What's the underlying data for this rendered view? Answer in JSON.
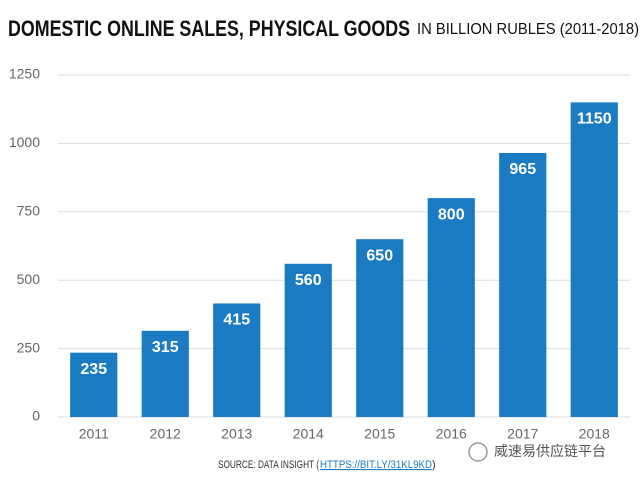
{
  "chart_data": {
    "type": "bar",
    "title": "DOMESTIC ONLINE SALES, PHYSICAL GOODS",
    "subtitle": "IN BILLION RUBLES (2011-2018)",
    "categories": [
      "2011",
      "2012",
      "2013",
      "2014",
      "2015",
      "2016",
      "2017",
      "2018"
    ],
    "values": [
      235,
      315,
      415,
      560,
      650,
      800,
      965,
      1150
    ],
    "color": "#1a7bc3",
    "ylim": [
      0,
      1250
    ],
    "yticks": [
      0,
      250,
      500,
      750,
      1000,
      1250
    ],
    "grid": true,
    "source": {
      "prefix": "SOURCE: DATA INSIGHT (",
      "link": "HTTPS://BIT.LY/31KL9KD",
      "suffix": ")"
    },
    "watermark": "威速易供应链平台"
  }
}
